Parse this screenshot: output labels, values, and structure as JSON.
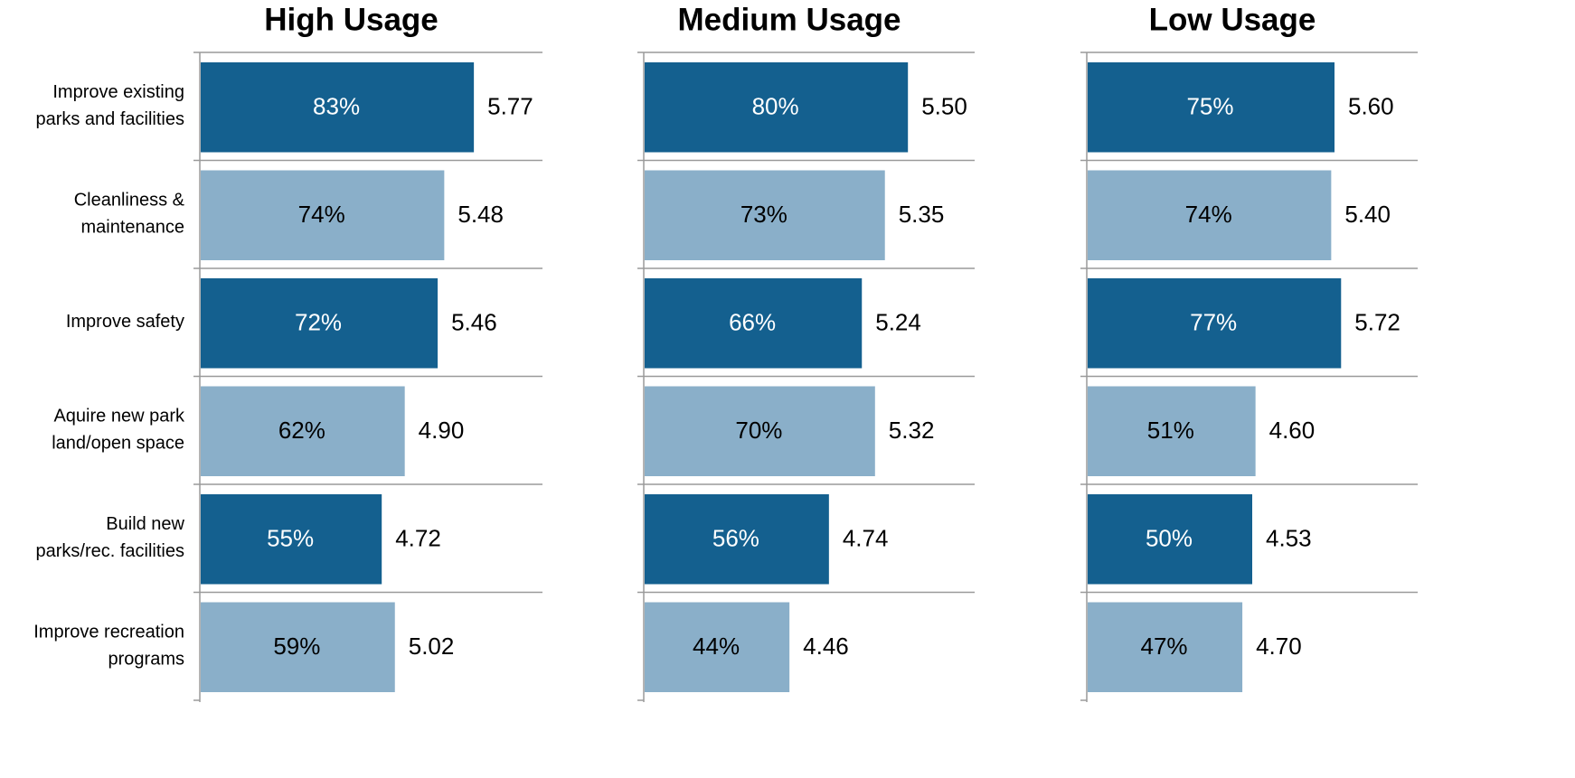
{
  "chart_data": {
    "type": "bar",
    "orientation": "horizontal",
    "categories": [
      [
        "Improve existing",
        "parks and facilities"
      ],
      [
        "Cleanliness &",
        "maintenance"
      ],
      [
        "Improve safety"
      ],
      [
        "Aquire new park",
        "land/open space"
      ],
      [
        "Build new",
        "parks/rec. facilities"
      ],
      [
        "Improve recreation",
        "programs"
      ]
    ],
    "colors": [
      "#14608f",
      "#8aafc9",
      "#14608f",
      "#8aafc9",
      "#14608f",
      "#8aafc9"
    ],
    "xlim": [
      0,
      100
    ],
    "series": [
      {
        "name": "High Usage",
        "values": [
          83,
          74,
          72,
          62,
          55,
          59
        ],
        "value_labels": [
          "83%",
          "74%",
          "72%",
          "62%",
          "55%",
          "59%"
        ],
        "annotations": [
          "5.77",
          "5.48",
          "5.46",
          "4.90",
          "4.72",
          "5.02"
        ]
      },
      {
        "name": "Medium Usage",
        "values": [
          80,
          73,
          66,
          70,
          56,
          44
        ],
        "value_labels": [
          "80%",
          "73%",
          "66%",
          "70%",
          "56%",
          "44%"
        ],
        "annotations": [
          "5.50",
          "5.35",
          "5.24",
          "5.32",
          "4.74",
          "4.46"
        ]
      },
      {
        "name": "Low Usage",
        "values": [
          75,
          74,
          77,
          51,
          50,
          47
        ],
        "value_labels": [
          "75%",
          "74%",
          "77%",
          "51%",
          "50%",
          "47%"
        ],
        "annotations": [
          "5.60",
          "5.40",
          "5.72",
          "4.60",
          "4.53",
          "4.70"
        ]
      }
    ]
  }
}
